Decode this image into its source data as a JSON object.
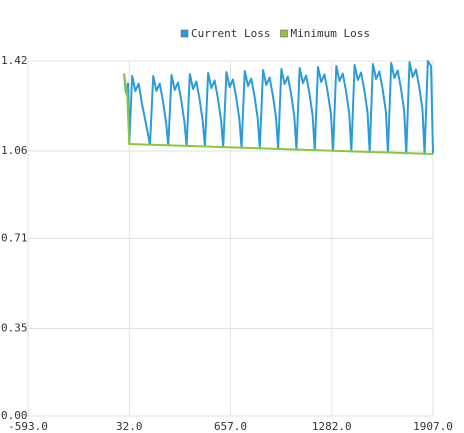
{
  "chart_data": {
    "type": "line",
    "xlim": [
      -593,
      1907
    ],
    "xticks": [
      {
        "value": -593,
        "label": "-593.0"
      },
      {
        "value": 32,
        "label": "32.0"
      },
      {
        "value": 657,
        "label": "657.0"
      },
      {
        "value": 1282,
        "label": "1282.0"
      },
      {
        "value": 1907,
        "label": "1907.0"
      }
    ],
    "ylim": [
      0,
      1.42
    ],
    "yticks": [
      {
        "value": 0,
        "label": "0.00"
      },
      {
        "value": 0.35,
        "label": "0.35"
      },
      {
        "value": 0.71,
        "label": "0.71"
      },
      {
        "value": 1.06,
        "label": "1.06"
      },
      {
        "value": 1.42,
        "label": "1.42"
      }
    ],
    "grid": true,
    "legend": "top",
    "series": [
      {
        "name": "Current Loss",
        "color": "#2b9cd8",
        "x": [
          0,
          10,
          20,
          25,
          32,
          50,
          70,
          90,
          110,
          135,
          160,
          180,
          200,
          220,
          240,
          260,
          273,
          293,
          313,
          333,
          353,
          373,
          386,
          406,
          426,
          446,
          466,
          486,
          499,
          519,
          539,
          559,
          579,
          599,
          612,
          632,
          652,
          672,
          692,
          712,
          725,
          745,
          765,
          785,
          805,
          825,
          838,
          858,
          878,
          898,
          918,
          938,
          951,
          971,
          991,
          1011,
          1031,
          1051,
          1064,
          1084,
          1104,
          1124,
          1144,
          1164,
          1177,
          1197,
          1217,
          1237,
          1257,
          1277,
          1290,
          1310,
          1330,
          1350,
          1370,
          1390,
          1403,
          1423,
          1443,
          1463,
          1483,
          1503,
          1516,
          1536,
          1556,
          1576,
          1596,
          1616,
          1629,
          1649,
          1669,
          1689,
          1709,
          1729,
          1742,
          1762,
          1782,
          1802,
          1822,
          1842,
          1855,
          1875,
          1895,
          1907
        ],
        "values": [
          1.37,
          1.3,
          1.28,
          1.33,
          1.09,
          1.36,
          1.3,
          1.33,
          1.25,
          1.17,
          1.085,
          1.36,
          1.3,
          1.33,
          1.26,
          1.17,
          1.083,
          1.364,
          1.304,
          1.334,
          1.264,
          1.174,
          1.08,
          1.368,
          1.308,
          1.338,
          1.268,
          1.178,
          1.078,
          1.372,
          1.312,
          1.342,
          1.272,
          1.182,
          1.075,
          1.376,
          1.316,
          1.346,
          1.276,
          1.186,
          1.073,
          1.38,
          1.32,
          1.35,
          1.28,
          1.19,
          1.07,
          1.384,
          1.324,
          1.354,
          1.284,
          1.194,
          1.068,
          1.388,
          1.328,
          1.358,
          1.288,
          1.198,
          1.065,
          1.392,
          1.332,
          1.362,
          1.292,
          1.202,
          1.063,
          1.396,
          1.336,
          1.366,
          1.296,
          1.206,
          1.06,
          1.4,
          1.34,
          1.37,
          1.3,
          1.21,
          1.058,
          1.404,
          1.344,
          1.374,
          1.304,
          1.214,
          1.055,
          1.408,
          1.348,
          1.378,
          1.308,
          1.218,
          1.053,
          1.412,
          1.352,
          1.382,
          1.312,
          1.222,
          1.05,
          1.416,
          1.356,
          1.386,
          1.316,
          1.226,
          1.048,
          1.42,
          1.4,
          1.05
        ]
      },
      {
        "name": "Minimum Loss",
        "color": "#8dc540",
        "x": [
          0,
          20,
          32,
          1907
        ],
        "values": [
          1.37,
          1.28,
          1.088,
          1.048
        ]
      }
    ]
  }
}
